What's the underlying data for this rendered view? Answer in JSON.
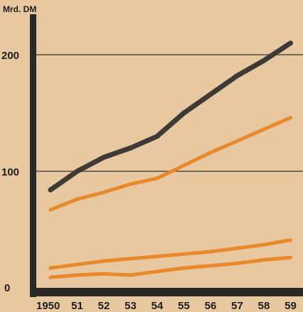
{
  "chart_data": {
    "type": "line",
    "ylabel": "Mrd. DM",
    "x": [
      "1950",
      "51",
      "52",
      "53",
      "54",
      "55",
      "56",
      "57",
      "58",
      "59"
    ],
    "yticks": [
      "0",
      "100",
      "200"
    ],
    "ylim": [
      0,
      220
    ],
    "grid": "horizontal",
    "legend": "none",
    "series": [
      {
        "values": [
          84,
          100,
          112,
          120,
          130,
          150,
          166,
          182,
          195,
          210
        ],
        "color": "#403a36"
      },
      {
        "values": [
          67,
          76,
          82,
          89,
          94,
          105,
          116,
          126,
          136,
          146
        ],
        "color": "#e8892c"
      },
      {
        "values": [
          17,
          20,
          23,
          25,
          27,
          29,
          31,
          34,
          37,
          41
        ],
        "color": "#e8892c"
      },
      {
        "values": [
          9,
          11,
          12,
          11,
          14,
          17,
          19,
          21,
          24,
          26
        ],
        "color": "#e8892c"
      }
    ]
  }
}
